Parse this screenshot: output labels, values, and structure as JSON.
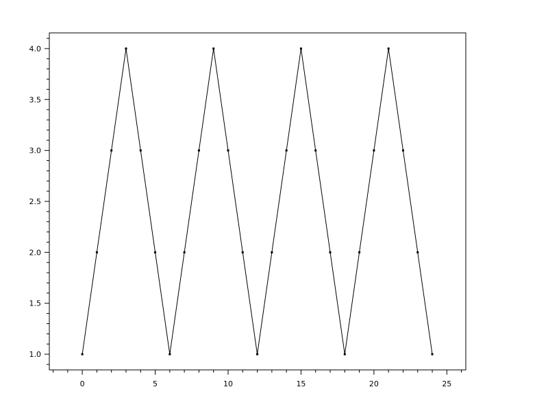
{
  "chart_data": {
    "type": "line",
    "title": "",
    "xlabel": "",
    "ylabel": "",
    "xlim": [
      -2.26,
      26.3
    ],
    "ylim": [
      0.846,
      4.154
    ],
    "x_ticks": [
      0,
      5,
      10,
      15,
      20,
      25
    ],
    "x_tick_labels": [
      "0",
      "5",
      "10",
      "15",
      "20",
      "25"
    ],
    "x_minor_step": 1,
    "y_ticks": [
      1.0,
      1.5,
      2.0,
      2.5,
      3.0,
      3.5,
      4.0
    ],
    "y_tick_labels": [
      "1.0",
      "1.5",
      "2.0",
      "2.5",
      "3.0",
      "3.5",
      "4.0"
    ],
    "y_minor_step": 0.1,
    "grid": false,
    "line_color": "#000000",
    "marker": "dot",
    "series": [
      {
        "x": [
          0,
          1,
          2,
          3,
          4,
          5,
          6,
          7,
          8,
          9,
          10,
          11,
          12,
          13,
          14,
          15,
          16,
          17,
          18,
          19,
          20,
          21,
          22,
          23,
          24
        ],
        "y": [
          1,
          2,
          3,
          4,
          3,
          2,
          1,
          2,
          3,
          4,
          3,
          2,
          1,
          2,
          3,
          4,
          3,
          2,
          1,
          2,
          3,
          4,
          3,
          2,
          1
        ]
      }
    ]
  }
}
